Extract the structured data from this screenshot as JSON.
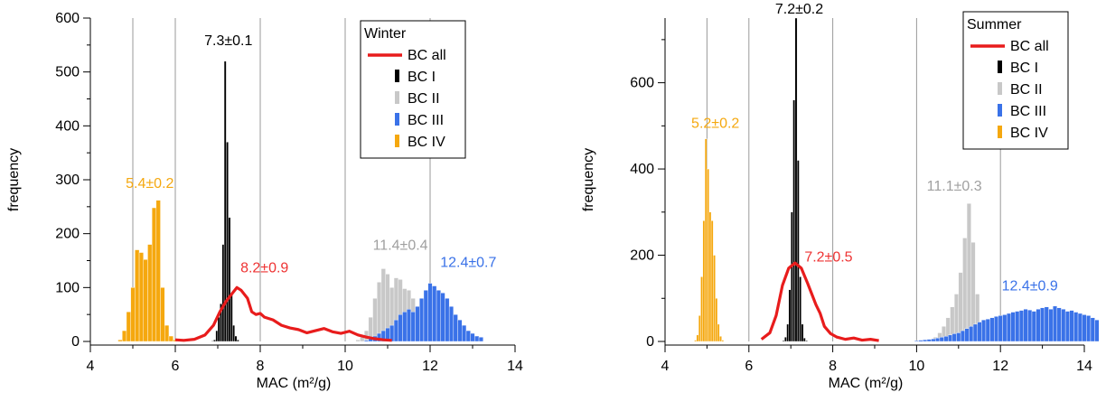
{
  "chart_data": [
    {
      "type": "bar",
      "panel": "left",
      "xlabel": "MAC (m²/g)",
      "ylabel": "frequency",
      "xlim": [
        4,
        14
      ],
      "ylim": [
        0,
        600
      ],
      "xticks": [
        "4",
        "6",
        "8",
        "10",
        "12",
        "14"
      ],
      "yticks": [
        "0",
        "100",
        "200",
        "300",
        "400",
        "500",
        "600"
      ],
      "vgrid": [
        5,
        6,
        8,
        10,
        12
      ],
      "legend": {
        "title": "Winter",
        "placement": "top-right"
      },
      "annotations": [
        {
          "text": "7.3±0.1",
          "x": 7.25,
          "y": 550,
          "color": "#000000"
        },
        {
          "text": "5.4±0.2",
          "x": 5.4,
          "y": 285,
          "color": "#f5a80f"
        },
        {
          "text": "8.2±0.9",
          "x": 8.1,
          "y": 128,
          "color": "#ee3333"
        },
        {
          "text": "11.4±0.4",
          "x": 11.3,
          "y": 170,
          "color": "#a0a0a0"
        },
        {
          "text": "12.4±0.7",
          "x": 12.9,
          "y": 138,
          "color": "#3a72e8"
        }
      ],
      "series": [
        {
          "name": "BC IV",
          "kind": "hist",
          "color": "#f5a80f",
          "x0": 4.65,
          "bin": 0.1,
          "values": [
            3,
            20,
            55,
            100,
            170,
            165,
            152,
            180,
            248,
            262,
            100,
            30,
            10,
            3
          ]
        },
        {
          "name": "BC I",
          "kind": "hist",
          "color": "#000000",
          "x0": 6.85,
          "bin": 0.05,
          "values": [
            1,
            3,
            20,
            45,
            70,
            180,
            520,
            370,
            230,
            90,
            30,
            10,
            3
          ]
        },
        {
          "name": "BC II",
          "kind": "hist",
          "color": "#c8c8c8",
          "x0": 10.25,
          "bin": 0.1,
          "values": [
            3,
            8,
            20,
            45,
            80,
            110,
            135,
            125,
            100,
            118,
            115,
            98,
            95,
            80,
            60,
            40,
            20,
            8
          ]
        },
        {
          "name": "BC III",
          "kind": "hist",
          "color": "#3a72e8",
          "x0": 10.45,
          "bin": 0.1,
          "values": [
            2,
            5,
            10,
            15,
            20,
            25,
            30,
            40,
            50,
            55,
            60,
            55,
            65,
            80,
            95,
            108,
            103,
            95,
            90,
            80,
            65,
            50,
            40,
            30,
            20,
            15,
            10,
            8
          ]
        },
        {
          "name": "BC all",
          "kind": "line",
          "color": "#e81c1c",
          "x": [
            6.0,
            6.2,
            6.45,
            6.7,
            6.9,
            7.05,
            7.2,
            7.35,
            7.45,
            7.55,
            7.7,
            7.8,
            7.9,
            8.0,
            8.1,
            8.3,
            8.5,
            8.7,
            8.9,
            9.1,
            9.3,
            9.5,
            9.7,
            9.9,
            10.1,
            10.3,
            10.5,
            10.7,
            10.9,
            11.1
          ],
          "values": [
            3,
            2,
            4,
            12,
            30,
            55,
            75,
            90,
            100,
            95,
            80,
            55,
            50,
            52,
            45,
            40,
            30,
            25,
            22,
            16,
            20,
            24,
            18,
            15,
            19,
            12,
            8,
            5,
            3,
            2
          ]
        }
      ]
    },
    {
      "type": "bar",
      "panel": "right",
      "xlabel": "MAC (m²/g)",
      "ylabel": "frequency",
      "xlim": [
        4,
        14
      ],
      "ylim": [
        0,
        750
      ],
      "xticks": [
        "4",
        "6",
        "8",
        "10",
        "12",
        "14"
      ],
      "yticks": [
        "0",
        "200",
        "400",
        "600"
      ],
      "yticks_values": [
        0,
        200,
        400,
        600
      ],
      "vgrid": [
        5,
        6,
        8,
        10,
        12
      ],
      "legend": {
        "title": "Summer",
        "placement": "top-right"
      },
      "annotations": [
        {
          "text": "7.2±0.2",
          "x": 7.2,
          "y": 760,
          "color": "#000000"
        },
        {
          "text": "5.2±0.2",
          "x": 5.2,
          "y": 495,
          "color": "#f5a80f"
        },
        {
          "text": "7.2±0.5",
          "x": 7.9,
          "y": 185,
          "color": "#ee3333"
        },
        {
          "text": "11.1±0.3",
          "x": 10.9,
          "y": 350,
          "color": "#a0a0a0"
        },
        {
          "text": "12.4±0.9",
          "x": 12.7,
          "y": 118,
          "color": "#3a72e8"
        }
      ],
      "series": [
        {
          "name": "BC IV",
          "kind": "hist",
          "color": "#f5a80f",
          "x0": 4.7,
          "bin": 0.05,
          "values": [
            3,
            15,
            60,
            150,
            280,
            470,
            400,
            300,
            280,
            200,
            100,
            40,
            12,
            3
          ]
        },
        {
          "name": "BC I",
          "kind": "hist",
          "color": "#000000",
          "x0": 6.8,
          "bin": 0.05,
          "values": [
            2,
            10,
            40,
            120,
            300,
            560,
            750,
            420,
            150,
            40,
            8,
            2
          ]
        },
        {
          "name": "BC II",
          "kind": "hist",
          "color": "#c8c8c8",
          "x0": 10.3,
          "bin": 0.1,
          "values": [
            5,
            10,
            20,
            35,
            55,
            80,
            110,
            160,
            240,
            320,
            230,
            110,
            45,
            15,
            5
          ]
        },
        {
          "name": "BC III",
          "kind": "hist",
          "color": "#3a72e8",
          "x0": 9.95,
          "bin": 0.1,
          "values": [
            2,
            3,
            4,
            5,
            6,
            8,
            10,
            12,
            15,
            18,
            20,
            25,
            30,
            35,
            40,
            45,
            50,
            52,
            55,
            58,
            60,
            62,
            65,
            68,
            70,
            72,
            75,
            73,
            70,
            75,
            78,
            80,
            75,
            82,
            78,
            75,
            70,
            72,
            68,
            65,
            62,
            60,
            55,
            50
          ]
        },
        {
          "name": "BC all",
          "kind": "line",
          "color": "#e81c1c",
          "x": [
            6.3,
            6.5,
            6.65,
            6.8,
            6.95,
            7.1,
            7.25,
            7.4,
            7.5,
            7.6,
            7.7,
            7.8,
            7.95,
            8.1,
            8.3,
            8.5,
            8.7,
            8.9,
            9.1
          ],
          "values": [
            5,
            20,
            60,
            130,
            170,
            182,
            170,
            135,
            110,
            85,
            65,
            35,
            18,
            10,
            5,
            8,
            3,
            5,
            2
          ]
        }
      ]
    }
  ]
}
